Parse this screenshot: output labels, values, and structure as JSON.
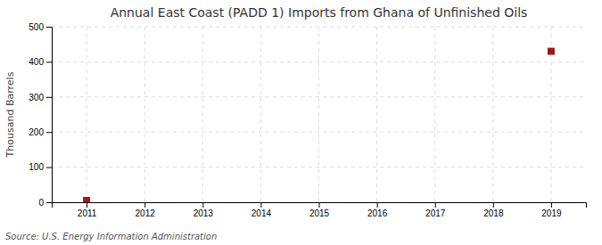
{
  "chart_data": {
    "type": "scatter",
    "title": "Annual East Coast (PADD 1) Imports from Ghana of Unfinished Oils",
    "ylabel": "Thousand Barrels",
    "source": "Source: U.S. Energy Information Administration",
    "x": [
      2011,
      2019
    ],
    "values": [
      5,
      430
    ],
    "color": "#9B1B1B",
    "marker": "square",
    "xlim": [
      2010.4,
      2019.6
    ],
    "xticks": [
      2011,
      2012,
      2013,
      2014,
      2015,
      2016,
      2017,
      2018,
      2019
    ],
    "ylim": [
      0,
      500
    ],
    "yticks": [
      0,
      100,
      200,
      300,
      400,
      500
    ],
    "grid": true
  }
}
